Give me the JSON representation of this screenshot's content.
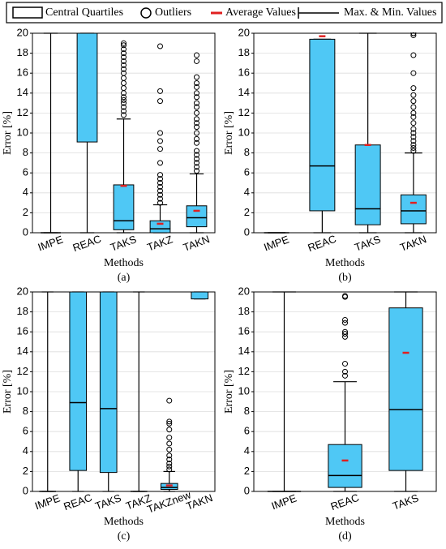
{
  "legend": [
    "Central Quartiles",
    "Outliers",
    "Average Values",
    "Max. & Min. Values"
  ],
  "chart_data": [
    {
      "type": "box",
      "caption": "(a)",
      "xlabel": "Methods",
      "ylabel": "Error [%]",
      "color": "#4fc8f5",
      "mean_color": "#e02020",
      "categories": [
        "IMPE",
        "REAC",
        "TAKS",
        "TAKZ",
        "TAKN"
      ],
      "ylim": [
        0,
        20
      ],
      "yticks": [
        0,
        2,
        4,
        6,
        8,
        10,
        12,
        14,
        16,
        18,
        20
      ],
      "grid": true,
      "boxes": [
        {
          "min": 0,
          "q1": 0,
          "median": 0,
          "q3": 0,
          "max": 20,
          "mean": null,
          "outliers": []
        },
        {
          "min": 0,
          "q1": 9.1,
          "median": null,
          "q3": 20,
          "max": 20,
          "mean": null,
          "outliers": []
        },
        {
          "min": 0,
          "q1": 0.3,
          "median": 1.2,
          "q3": 4.8,
          "max": 11.4,
          "mean": 4.7,
          "outliers": [
            11.8,
            12.2,
            12.6,
            13,
            13.3,
            13.6,
            14,
            14.5,
            15,
            15.5,
            16,
            16.4,
            16.8,
            17.2,
            17.6,
            18,
            18.4,
            18.8,
            19
          ]
        },
        {
          "min": 0,
          "q1": 0,
          "median": 0.4,
          "q3": 1.2,
          "max": 2.8,
          "mean": 0.9,
          "outliers": [
            3,
            3.4,
            3.8,
            4.2,
            4.6,
            5,
            5.4,
            5.8,
            7,
            8.4,
            9.2,
            10,
            13.2,
            14.2,
            18.7
          ]
        },
        {
          "min": 0,
          "q1": 0.6,
          "median": 1.5,
          "q3": 2.7,
          "max": 5.9,
          "mean": 2.2,
          "outliers": [
            6.2,
            6.6,
            7,
            7.4,
            7.8,
            8.2,
            9,
            9.4,
            10,
            10.6,
            11,
            11.4,
            12,
            12.6,
            13,
            13.6,
            14,
            14.6,
            15,
            15.6,
            17.2,
            17.8
          ]
        }
      ]
    },
    {
      "type": "box",
      "caption": "(b)",
      "xlabel": "Methods",
      "ylabel": "Error [%]",
      "color": "#4fc8f5",
      "mean_color": "#e02020",
      "categories": [
        "IMPE",
        "REAC",
        "TAKS",
        "TAKN"
      ],
      "ylim": [
        0,
        20
      ],
      "yticks": [
        0,
        2,
        4,
        6,
        8,
        10,
        12,
        14,
        16,
        18,
        20
      ],
      "grid": true,
      "boxes": [
        {
          "min": 0,
          "q1": 0,
          "median": 0,
          "q3": 0,
          "max": 0,
          "mean": null,
          "outliers": []
        },
        {
          "min": 0,
          "q1": 2.2,
          "median": 6.7,
          "q3": 19.4,
          "max": 19.4,
          "mean": 19.7,
          "outliers": []
        },
        {
          "min": 0,
          "q1": 0.8,
          "median": 2.4,
          "q3": 8.8,
          "max": 20,
          "mean": 8.8,
          "outliers": []
        },
        {
          "min": 0,
          "q1": 0.9,
          "median": 2.2,
          "q3": 3.8,
          "max": 8,
          "mean": 3,
          "outliers": [
            8.2,
            8.5,
            8.8,
            9.2,
            9.6,
            10,
            10.4,
            11,
            11.6,
            12,
            12.6,
            13.2,
            13.8,
            14.5,
            16,
            17.8,
            19.8,
            20
          ]
        }
      ]
    },
    {
      "type": "box",
      "caption": "(c)",
      "xlabel": "Methods",
      "ylabel": "Error [%]",
      "color": "#4fc8f5",
      "mean_color": "#e02020",
      "categories": [
        "IMPE",
        "REAC",
        "TAKS",
        "TAKZ",
        "TAKZnew",
        "TAKN"
      ],
      "ylim": [
        0,
        20
      ],
      "yticks": [
        0,
        2,
        4,
        6,
        8,
        10,
        12,
        14,
        16,
        18,
        20
      ],
      "grid": true,
      "boxes": [
        {
          "min": 0,
          "q1": 0,
          "median": 0,
          "q3": 0,
          "max": 20,
          "mean": null,
          "outliers": []
        },
        {
          "min": 0,
          "q1": 2.1,
          "median": 8.9,
          "q3": 20,
          "max": 20,
          "mean": null,
          "outliers": []
        },
        {
          "min": 0,
          "q1": 1.9,
          "median": 8.3,
          "q3": 20,
          "max": 20,
          "mean": null,
          "outliers": []
        },
        {
          "min": 0,
          "q1": 0,
          "median": 0,
          "q3": 0,
          "max": 20,
          "mean": null,
          "outliers": []
        },
        {
          "min": 0,
          "q1": 0.2,
          "median": 0.4,
          "q3": 0.8,
          "max": 2,
          "mean": 0.6,
          "outliers": [
            2.2,
            2.5,
            2.8,
            3.2,
            3.6,
            4.2,
            4.8,
            5.4,
            6.2,
            6.8,
            7,
            9.1
          ]
        },
        {
          "min": 19.3,
          "q1": 19.3,
          "median": null,
          "q3": 20,
          "max": 20,
          "mean": null,
          "outliers": []
        }
      ]
    },
    {
      "type": "box",
      "caption": "(d)",
      "xlabel": "Methods",
      "ylabel": "Error [%]",
      "color": "#4fc8f5",
      "mean_color": "#e02020",
      "categories": [
        "IMPE",
        "REAC",
        "TAKS"
      ],
      "ylim": [
        0,
        20
      ],
      "yticks": [
        0,
        2,
        4,
        6,
        8,
        10,
        12,
        14,
        16,
        18,
        20
      ],
      "grid": true,
      "boxes": [
        {
          "min": 0,
          "q1": 0,
          "median": 0,
          "q3": 0,
          "max": 20,
          "mean": null,
          "outliers": []
        },
        {
          "min": 0,
          "q1": 0.4,
          "median": 1.6,
          "q3": 4.7,
          "max": 11,
          "mean": 3.1,
          "outliers": [
            11.6,
            12,
            12.8,
            15.5,
            15.8,
            16,
            16.9,
            17.2,
            19.5,
            19.6
          ]
        },
        {
          "min": 0,
          "q1": 2.1,
          "median": 8.2,
          "q3": 18.4,
          "max": 20,
          "mean": 13.9,
          "outliers": []
        }
      ]
    }
  ]
}
